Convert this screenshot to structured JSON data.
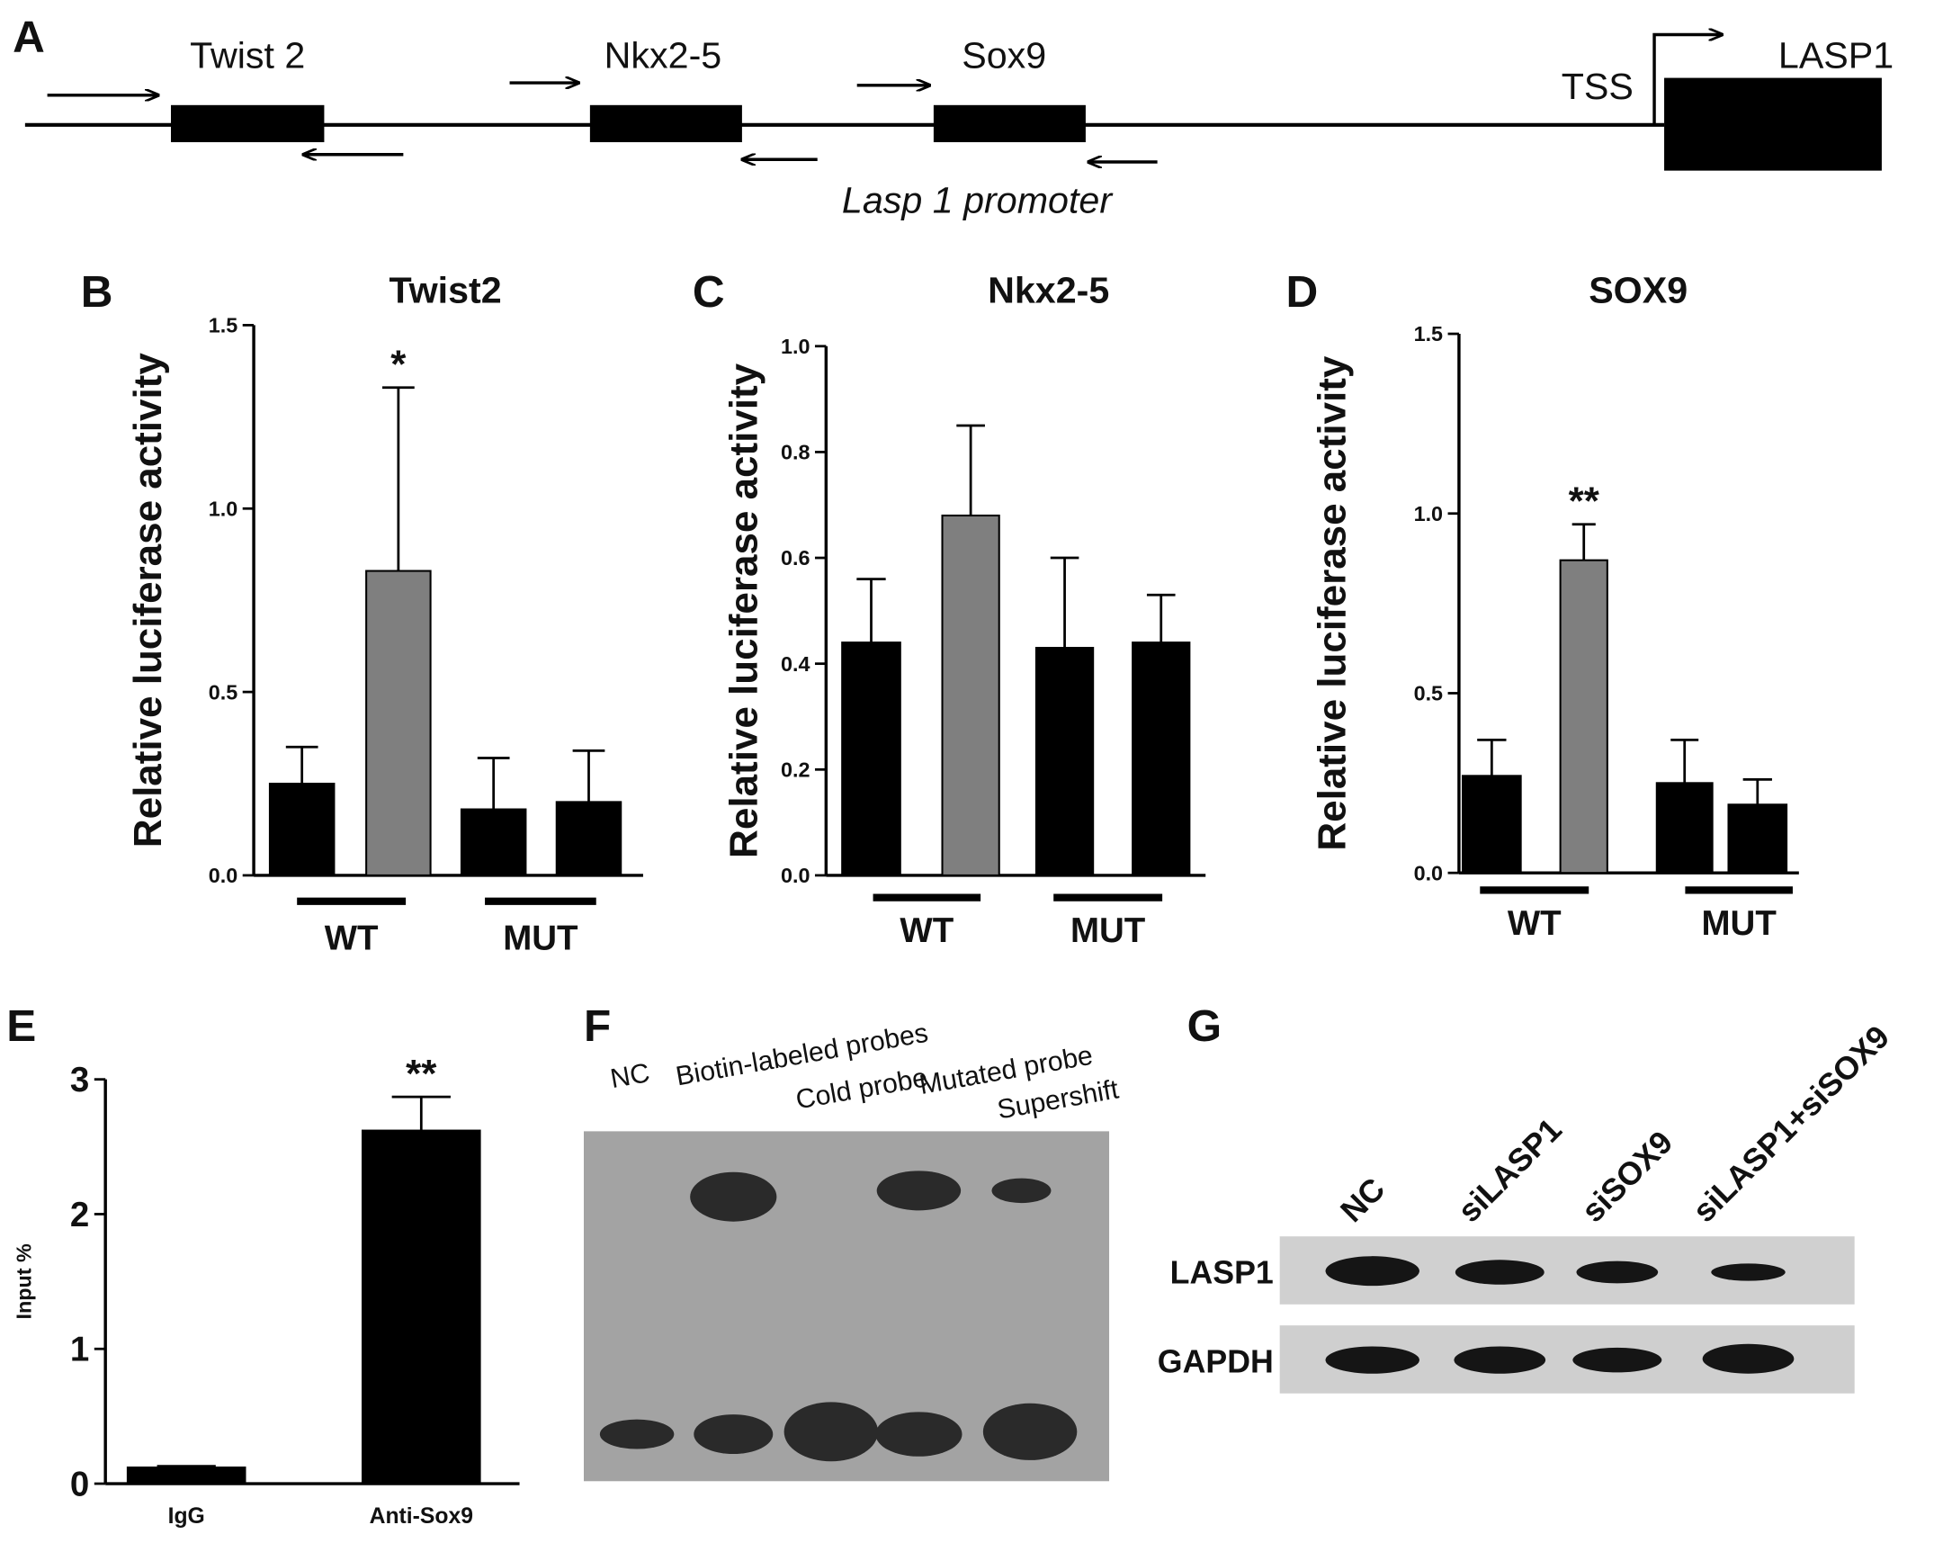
{
  "panel_a": {
    "label": "A",
    "genes": [
      "Twist 2",
      "Nkx2-5",
      "Sox9"
    ],
    "tss": "TSS",
    "gene": "LASP1",
    "promoter": "Lasp 1 promoter"
  },
  "chart_data": [
    {
      "type": "bar",
      "panel": "B",
      "title": "Twist2",
      "ylabel": "Relative luciferase activity",
      "categories": [
        null,
        null,
        null,
        null
      ],
      "values": [
        0.25,
        0.83,
        0.18,
        0.2
      ],
      "errors": [
        0.1,
        0.5,
        0.14,
        0.14
      ],
      "colors": [
        "#000000",
        "#7f7f7f",
        "#000000",
        "#000000"
      ],
      "significance": [
        null,
        "*",
        null,
        null
      ],
      "group_labels": [
        "WT",
        "MUT"
      ],
      "ylim": [
        0,
        1.5
      ],
      "yticks": [
        {
          "value": 0,
          "label": "0.0"
        },
        {
          "value": 0.5,
          "label": "0.5"
        },
        {
          "value": 1,
          "label": "1.0"
        },
        {
          "value": 1.5,
          "label": "1.5"
        }
      ]
    },
    {
      "type": "bar",
      "panel": "C",
      "title": "Nkx2-5",
      "ylabel": "Relative luciferase activity",
      "categories": [
        null,
        null,
        null,
        null
      ],
      "values": [
        0.44,
        0.68,
        0.43,
        0.44
      ],
      "errors": [
        0.12,
        0.17,
        0.17,
        0.09
      ],
      "colors": [
        "#000000",
        "#7f7f7f",
        "#000000",
        "#000000"
      ],
      "significance": [
        null,
        null,
        null,
        null
      ],
      "group_labels": [
        "WT",
        "MUT"
      ],
      "ylim": [
        0,
        1
      ],
      "yticks": [
        {
          "value": 0,
          "label": "0.0"
        },
        0.2,
        0.4,
        0.6,
        0.8,
        {
          "value": 1,
          "label": "1.0"
        }
      ]
    },
    {
      "type": "bar",
      "panel": "D",
      "title": "SOX9",
      "ylabel": "Relative luciferase activity",
      "categories": [
        null,
        null,
        null,
        null
      ],
      "values": [
        0.27,
        0.87,
        0.25,
        0.19
      ],
      "errors": [
        0.1,
        0.1,
        0.12,
        0.07
      ],
      "colors": [
        "#000000",
        "#7f7f7f",
        "#000000",
        "#000000"
      ],
      "significance": [
        null,
        "**",
        null,
        null
      ],
      "group_labels": [
        "WT",
        "MUT"
      ],
      "ylim": [
        0,
        1.5
      ],
      "yticks": [
        {
          "value": 0,
          "label": "0.0"
        },
        {
          "value": 0.5,
          "label": "0.5"
        },
        {
          "value": 1,
          "label": "1.0"
        },
        {
          "value": 1.5,
          "label": "1.5"
        }
      ]
    },
    {
      "type": "bar",
      "panel": "E",
      "ylabel": "Input %",
      "categories": [
        "IgG",
        "Anti-Sox9"
      ],
      "values": [
        0.12,
        2.62
      ],
      "errors": [
        0.01,
        0.25
      ],
      "colors": [
        "#000000",
        "#000000"
      ],
      "significance": [
        null,
        "**"
      ],
      "ylim": [
        0,
        3
      ],
      "yticks": [
        0,
        1,
        2,
        3
      ]
    }
  ],
  "panel_f": {
    "label": "F",
    "lanes": [
      "NC",
      "Biotin-labeled probes",
      "Cold probe",
      "Mutated probe",
      "Supershift"
    ]
  },
  "panel_g": {
    "label": "G",
    "lanes": [
      "NC",
      "siLASP1",
      "siSOX9",
      "siLASP1+siSOX9"
    ],
    "rows": [
      "LASP1",
      "GAPDH"
    ]
  }
}
